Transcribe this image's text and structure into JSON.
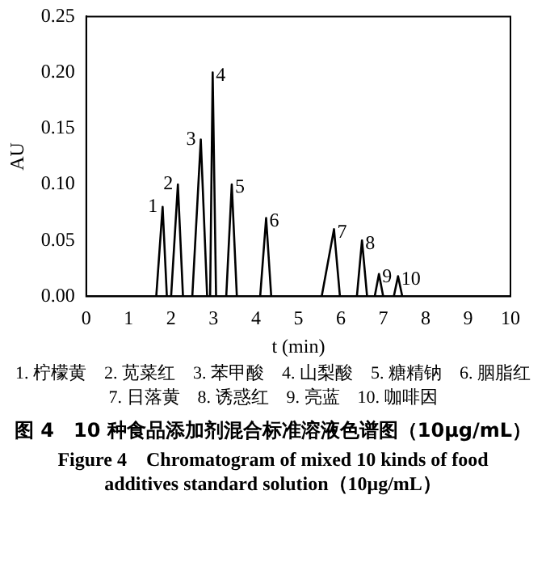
{
  "chart_data": {
    "type": "line",
    "title": "图 4　10 种食品添加剂混合标准溶液色谱图（10μg/mL）",
    "subtitle": "Figure 4　Chromatogram of mixed 10 kinds of food additives standard solution（10μg/mL）",
    "xlabel": "t (min)",
    "ylabel": "AU",
    "x": [
      0,
      1.65,
      1.8,
      1.9,
      2.0,
      2.16,
      2.28,
      2.5,
      2.7,
      2.85,
      2.92,
      2.98,
      3.06,
      3.3,
      3.43,
      3.55,
      4.1,
      4.24,
      4.36,
      5.55,
      5.84,
      5.98,
      6.38,
      6.5,
      6.62,
      6.8,
      6.9,
      7.0,
      7.25,
      7.35,
      7.45,
      10
    ],
    "series": [
      {
        "color": "#000000",
        "values": [
          0,
          0,
          0.08,
          0,
          0,
          0.1,
          0,
          0,
          0.14,
          0,
          0,
          0.2,
          0,
          0,
          0.1,
          0,
          0,
          0.07,
          0,
          0,
          0.06,
          0,
          0,
          0.05,
          0,
          0,
          0.02,
          0,
          0,
          0.018,
          0,
          0
        ]
      }
    ],
    "xlim": [
      0,
      10
    ],
    "xticks": [
      0,
      1,
      2,
      3,
      4,
      5,
      6,
      7,
      8,
      9,
      10
    ],
    "ylim": [
      0,
      0.25
    ],
    "yticks": [
      {
        "value": 0,
        "label": "0.00"
      },
      0.05,
      {
        "value": 0.1,
        "label": "0.10"
      },
      0.15,
      {
        "value": 0.2,
        "label": "0.20"
      },
      0.25
    ],
    "grid": false,
    "legend": false,
    "marker": "none",
    "line_style": "solid",
    "annotations": [
      {
        "text": "1",
        "x": 1.8,
        "y": 0.08
      },
      {
        "text": "2",
        "x": 2.16,
        "y": 0.1
      },
      {
        "text": "3",
        "x": 2.7,
        "y": 0.14
      },
      {
        "text": "4",
        "x": 2.98,
        "y": 0.2
      },
      {
        "text": "5",
        "x": 3.43,
        "y": 0.1
      },
      {
        "text": "6",
        "x": 4.24,
        "y": 0.07
      },
      {
        "text": "7",
        "x": 5.84,
        "y": 0.06
      },
      {
        "text": "8",
        "x": 6.5,
        "y": 0.05
      },
      {
        "text": "9",
        "x": 6.9,
        "y": 0.02
      },
      {
        "text": "10",
        "x": 7.35,
        "y": 0.018
      },
      "1. 柠檬黄　2. 苋菜红　3. 苯甲酸　4. 山梨酸　5. 糖精钠　6. 胭脂红　7. 日落黄　8. 诱惑红　9. 亮蓝　10. 咖啡因"
    ]
  }
}
